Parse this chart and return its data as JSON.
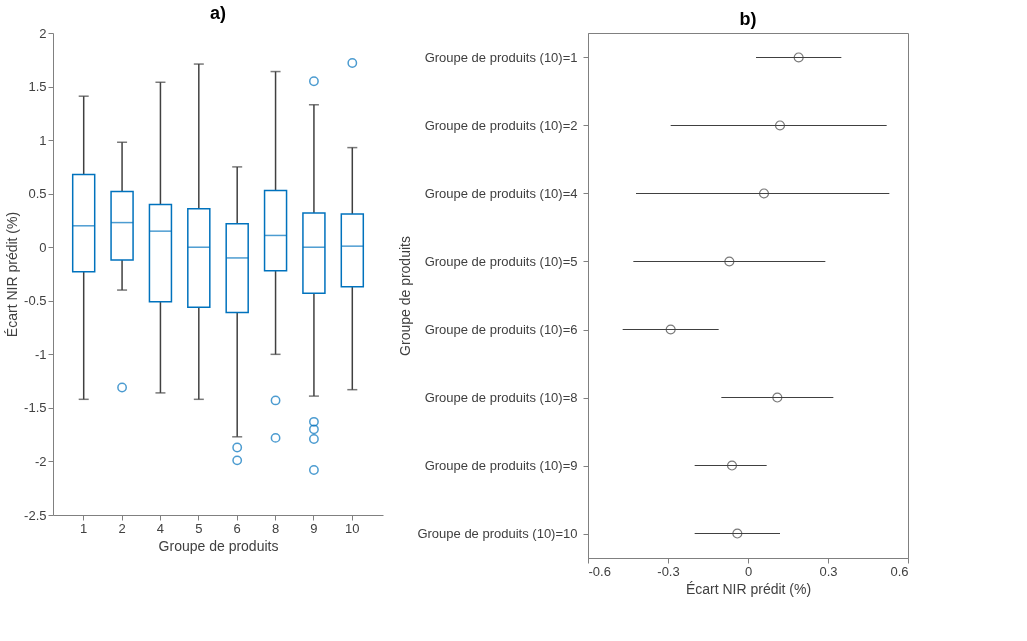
{
  "chart_data": [
    {
      "type": "box",
      "title": "a)",
      "xlabel": "Groupe de produits",
      "ylabel": "Écart NIR prédit (%)",
      "categories": [
        "1",
        "2",
        "4",
        "5",
        "6",
        "8",
        "9",
        "10"
      ],
      "ylim": [
        -2.5,
        2
      ],
      "yticks": [
        -2.5,
        -2,
        -1.5,
        -1,
        -0.5,
        0,
        0.5,
        1,
        1.5,
        2
      ],
      "grid": false,
      "series": [
        {
          "color": "#0072bd",
          "boxes": [
            {
              "low": -1.42,
              "q1": -0.23,
              "median": 0.2,
              "q3": 0.68,
              "high": 1.41
            },
            {
              "low": -0.4,
              "q1": -0.12,
              "median": 0.23,
              "q3": 0.52,
              "high": 0.98,
              "outliers": [
                -1.31
              ]
            },
            {
              "low": -1.36,
              "q1": -0.51,
              "median": 0.15,
              "q3": 0.4,
              "high": 1.54
            },
            {
              "low": -1.42,
              "q1": -0.56,
              "median": 0.0,
              "q3": 0.36,
              "high": 1.71
            },
            {
              "low": -1.77,
              "q1": -0.61,
              "median": -0.1,
              "q3": 0.22,
              "high": 0.75,
              "outliers": [
                -1.87,
                -1.99
              ]
            },
            {
              "low": -1.0,
              "q1": -0.22,
              "median": 0.11,
              "q3": 0.53,
              "high": 1.64,
              "outliers": [
                -1.43,
                -1.78
              ]
            },
            {
              "low": -1.39,
              "q1": -0.43,
              "median": 0.0,
              "q3": 0.32,
              "high": 1.33,
              "outliers": [
                1.55,
                -1.63,
                -1.7,
                -1.79,
                -2.08
              ]
            },
            {
              "low": -1.33,
              "q1": -0.37,
              "median": 0.01,
              "q3": 0.31,
              "high": 0.93,
              "outliers": [
                1.72
              ]
            }
          ]
        }
      ]
    },
    {
      "type": "scatter",
      "title": "b)",
      "xlabel": "Écart NIR prédit (%)",
      "ylabel": "Groupe de produits",
      "orientation": "horizontal",
      "categories": [
        "Groupe de produits (10)=1",
        "Groupe de produits (10)=2",
        "Groupe de produits (10)=4",
        "Groupe de produits (10)=5",
        "Groupe de produits (10)=6",
        "Groupe de produits (10)=8",
        "Groupe de produits (10)=9",
        "Groupe de produits (10)=10"
      ],
      "xlim": [
        -0.6,
        0.6
      ],
      "xticks": [
        -0.6,
        -0.3,
        0,
        0.3,
        0.6
      ],
      "grid": false,
      "marker": "circle",
      "series": [
        {
          "color": "#404040",
          "values": [
            0.19,
            0.12,
            0.06,
            -0.07,
            -0.29,
            0.11,
            -0.06,
            -0.04
          ],
          "errors": [
            [
              0.03,
              0.35
            ],
            [
              -0.29,
              0.52
            ],
            [
              -0.42,
              0.53
            ],
            [
              -0.43,
              0.29
            ],
            [
              -0.47,
              -0.11
            ],
            [
              -0.1,
              0.32
            ],
            [
              -0.2,
              0.07
            ],
            [
              -0.2,
              0.12
            ]
          ]
        }
      ]
    }
  ]
}
